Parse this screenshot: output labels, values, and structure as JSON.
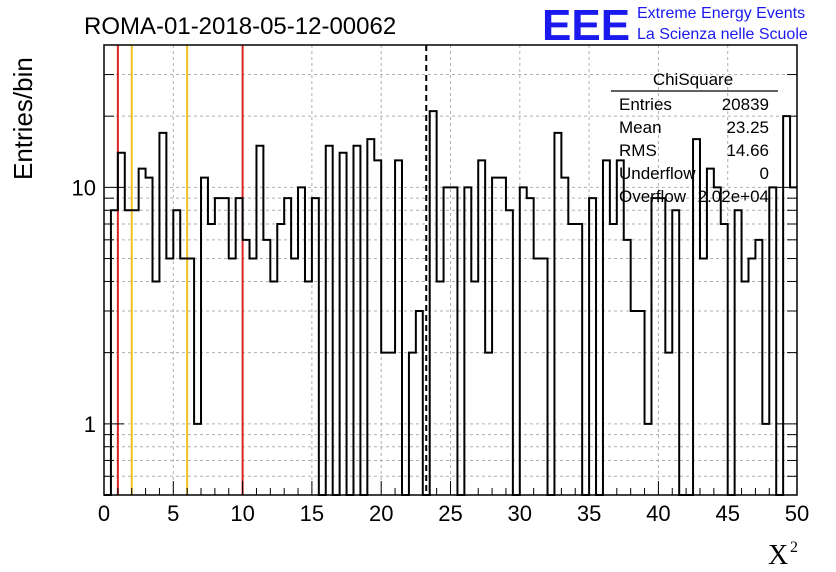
{
  "chart_data": {
    "type": "histogram",
    "title": "ROMA-01-2018-05-12-00062",
    "xlabel": "X",
    "xlabel_superscript": "2",
    "ylabel": "Entries/bin",
    "yscale": "log",
    "xlim": [
      0,
      50
    ],
    "ylim": [
      0.5,
      40
    ],
    "grid": true,
    "x_ticks": [
      "0",
      "5",
      "10",
      "15",
      "20",
      "25",
      "30",
      "35",
      "40",
      "45",
      "50"
    ],
    "y_ticks": [
      "1",
      "10"
    ],
    "bin_width": 0.5,
    "bin_start": 0,
    "counts": [
      0,
      8,
      14,
      8,
      8,
      12,
      11,
      4,
      17,
      5,
      8,
      5,
      5,
      1,
      11,
      7,
      9,
      9,
      5,
      9,
      6,
      5,
      15,
      6,
      4,
      7,
      9,
      5,
      10,
      4,
      9,
      0,
      15,
      0,
      14,
      0,
      15,
      0,
      16,
      13,
      2,
      2,
      13,
      0,
      2,
      3,
      0,
      21,
      4,
      10,
      10,
      0,
      10,
      4,
      13,
      2,
      11,
      11,
      8,
      0,
      10,
      9,
      5,
      5,
      0,
      17,
      11,
      7,
      7,
      0,
      9,
      0,
      13,
      7,
      13,
      6,
      3,
      3,
      1,
      9,
      9,
      2,
      8,
      0,
      0,
      16,
      5,
      12,
      10,
      7,
      0,
      8,
      4,
      5,
      6,
      1,
      10,
      0,
      20,
      10
    ],
    "vertical_lines": [
      {
        "x": 1,
        "color": "#dd2222",
        "style": "solid"
      },
      {
        "x": 2,
        "color": "#f0c020",
        "style": "solid"
      },
      {
        "x": 6,
        "color": "#f0c020",
        "style": "solid"
      },
      {
        "x": 10,
        "color": "#dd2222",
        "style": "solid"
      },
      {
        "x": 23.25,
        "color": "#000000",
        "style": "dashed"
      }
    ],
    "stats_box": {
      "title": "ChiSquare",
      "rows": [
        {
          "label": "Entries",
          "value": "20839"
        },
        {
          "label": "Mean",
          "value": "23.25"
        },
        {
          "label": "RMS",
          "value": "14.66"
        },
        {
          "label": "Underflow",
          "value": "0"
        },
        {
          "label": "Overflow",
          "value": "2.02e+04"
        }
      ]
    },
    "logo": {
      "text": "EEE",
      "line1": "Extreme Energy Events",
      "line2": "La Scienza nelle Scuole",
      "color": "#1a1aee"
    }
  }
}
